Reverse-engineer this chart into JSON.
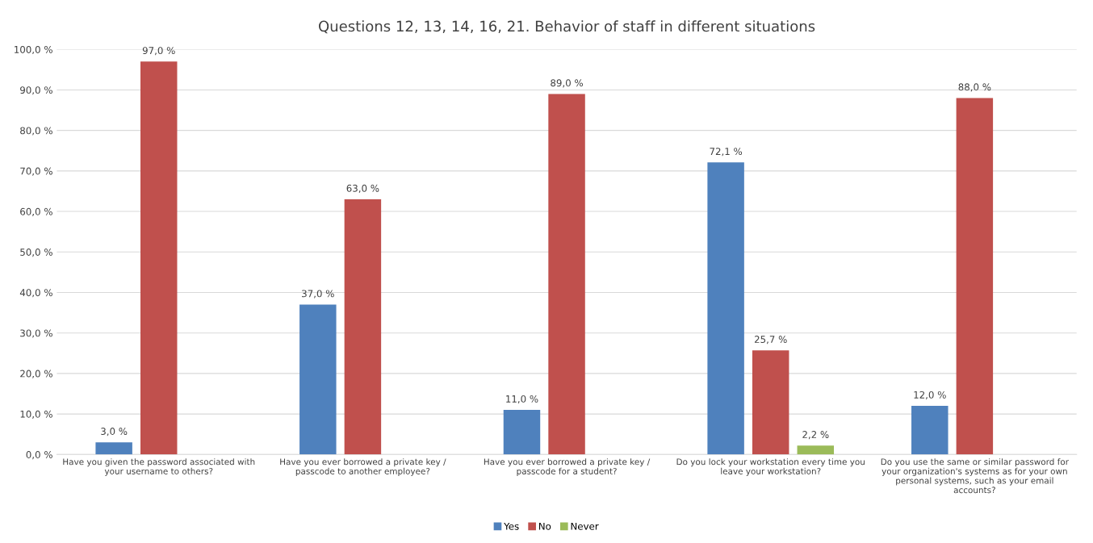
{
  "chart_data": {
    "type": "bar",
    "title": "Questions 12, 13, 14, 16, 21. Behavior of staff in different situations",
    "categories": [
      "Have you given the password associated with your username to others?",
      "Have you ever borrowed a private key / passcode to another employee?",
      "Have you ever borrowed a private key / passcode for a student?",
      "Do you lock your workstation every time you leave your workstation?",
      "Do you use the same or similar password for your organization's systems as for your own personal systems, such as your email accounts?"
    ],
    "series": [
      {
        "name": "Yes",
        "color": "#4f81bd",
        "values": [
          3.0,
          37.0,
          11.0,
          72.1,
          12.0
        ],
        "value_labels": [
          "3,0 %",
          "37,0 %",
          "11,0 %",
          "72,1 %",
          "12,0 %"
        ]
      },
      {
        "name": "No",
        "color": "#c0504d",
        "values": [
          97.0,
          63.0,
          89.0,
          25.7,
          88.0
        ],
        "value_labels": [
          "97,0 %",
          "63,0 %",
          "89,0 %",
          "25,7 %",
          "88,0 %"
        ]
      },
      {
        "name": "Never",
        "color": "#9bbb59",
        "values": [
          null,
          null,
          null,
          2.2,
          null
        ],
        "value_labels": [
          null,
          null,
          null,
          "2,2 %",
          null
        ]
      }
    ],
    "ylim": [
      0,
      100
    ],
    "yticks": [
      {
        "value": 0,
        "label": "0,0 %"
      },
      {
        "value": 10,
        "label": "10,0 %"
      },
      {
        "value": 20,
        "label": "20,0 %"
      },
      {
        "value": 30,
        "label": "30,0 %"
      },
      {
        "value": 40,
        "label": "40,0 %"
      },
      {
        "value": 50,
        "label": "50,0 %"
      },
      {
        "value": 60,
        "label": "60,0 %"
      },
      {
        "value": 70,
        "label": "70,0 %"
      },
      {
        "value": 80,
        "label": "80,0 %"
      },
      {
        "value": 90,
        "label": "90,0 %"
      },
      {
        "value": 100,
        "label": "100,0 %"
      }
    ],
    "grid": "y",
    "legend": "bottom"
  }
}
